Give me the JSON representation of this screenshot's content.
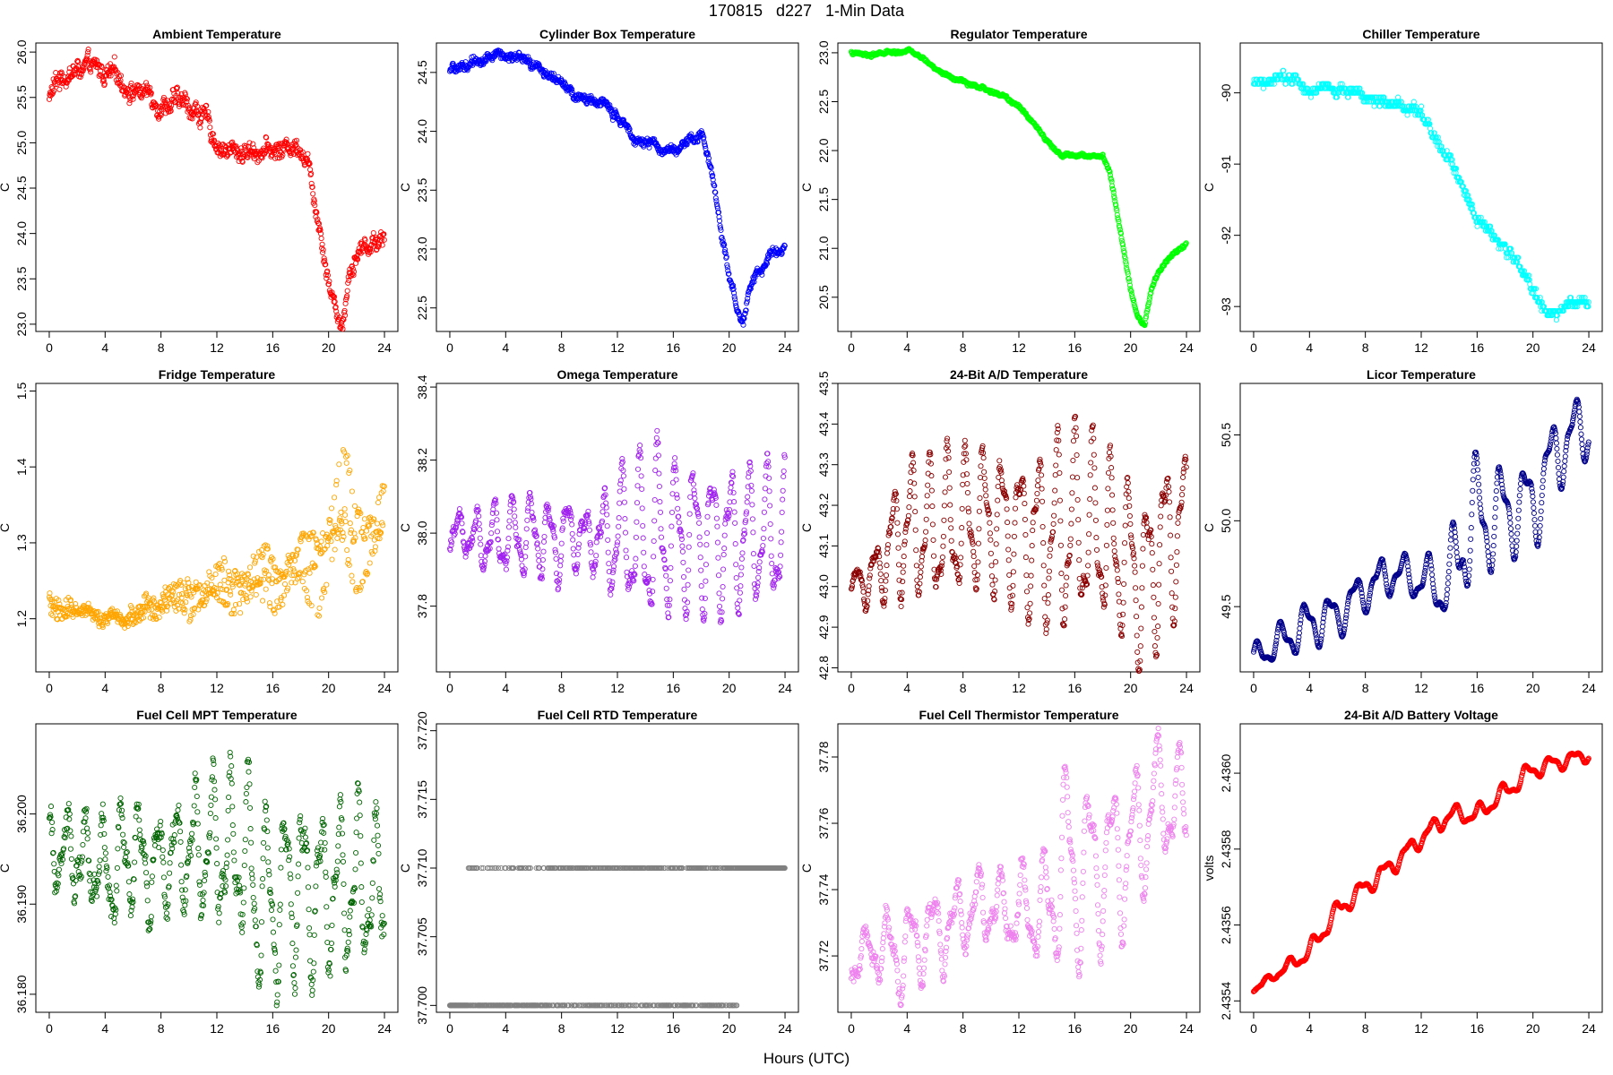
{
  "title": "170815   d227   1-Min Data",
  "x_axis_label": "Hours (UTC)",
  "chart_data": [
    {
      "type": "scatter",
      "title": "Ambient Temperature",
      "ylabel": "C",
      "color": "#ff0000",
      "xlim": [
        0,
        24
      ],
      "ylim": [
        22.92,
        26.1
      ],
      "xticks": [
        0,
        4,
        8,
        12,
        16,
        20,
        24
      ],
      "yticks": [
        23.0,
        23.5,
        24.0,
        24.5,
        25.0,
        25.5,
        26.0
      ],
      "ytick_labels": [
        "23.0",
        "23.5",
        "24.0",
        "24.5",
        "25.0",
        "25.5",
        "26.0"
      ],
      "trend_x": [
        0,
        0.5,
        1,
        2,
        3,
        4,
        5,
        6,
        7,
        8,
        9,
        10,
        11,
        12,
        13,
        14,
        15,
        16,
        17,
        18,
        18.5,
        19,
        19.5,
        20,
        20.5,
        21,
        21.5,
        22,
        23,
        24
      ],
      "trend_y": [
        25.5,
        25.65,
        25.75,
        25.8,
        25.8,
        25.75,
        25.7,
        25.6,
        25.55,
        25.45,
        25.45,
        25.4,
        25.3,
        25.0,
        24.9,
        24.9,
        24.95,
        24.9,
        24.95,
        25.0,
        24.8,
        24.4,
        24.0,
        23.5,
        23.2,
        23.0,
        23.6,
        23.8,
        23.9,
        24.0
      ],
      "noise": 0.09,
      "n_points": 1440
    },
    {
      "type": "scatter",
      "title": "Cylinder Box Temperature",
      "ylabel": "C",
      "color": "#0000ff",
      "xlim": [
        0,
        24
      ],
      "ylim": [
        22.3,
        24.75
      ],
      "xticks": [
        0,
        4,
        8,
        12,
        16,
        20,
        24
      ],
      "yticks": [
        22.5,
        23.0,
        23.5,
        24.0,
        24.5
      ],
      "ytick_labels": [
        "22.5",
        "23.0",
        "23.5",
        "24.0",
        "24.5"
      ],
      "trend_x": [
        0,
        1,
        2,
        3,
        4,
        5,
        6,
        7,
        8,
        9,
        10,
        11,
        12,
        13,
        14,
        15,
        16,
        17,
        18,
        18.5,
        19,
        19.5,
        20,
        20.5,
        21,
        21.5,
        22,
        23,
        24
      ],
      "trend_y": [
        24.5,
        24.55,
        24.6,
        24.65,
        24.65,
        24.6,
        24.55,
        24.5,
        24.4,
        24.3,
        24.25,
        24.25,
        24.1,
        24.0,
        23.9,
        23.85,
        23.85,
        23.9,
        23.95,
        23.8,
        23.5,
        23.1,
        22.8,
        22.5,
        22.35,
        22.7,
        22.8,
        22.95,
        23.05
      ],
      "noise": 0.035,
      "n_points": 1440
    },
    {
      "type": "scatter",
      "title": "Regulator Temperature",
      "ylabel": "C",
      "color": "#00ff00",
      "xlim": [
        0,
        24
      ],
      "ylim": [
        20.15,
        23.1
      ],
      "xticks": [
        0,
        4,
        8,
        12,
        16,
        20,
        24
      ],
      "yticks": [
        20.5,
        21.0,
        21.5,
        22.0,
        22.5,
        23.0
      ],
      "ytick_labels": [
        "20.5",
        "21.0",
        "21.5",
        "22.0",
        "22.5",
        "23.0"
      ],
      "trend_x": [
        0,
        1,
        2,
        3,
        4,
        5,
        6,
        7,
        8,
        9,
        10,
        11,
        12,
        13,
        14,
        15,
        16,
        17,
        18,
        18.5,
        19,
        19.5,
        20,
        20.5,
        21,
        21.5,
        22,
        23,
        24
      ],
      "trend_y": [
        23.0,
        22.98,
        22.99,
        23.0,
        23.02,
        22.95,
        22.85,
        22.75,
        22.7,
        22.65,
        22.6,
        22.55,
        22.45,
        22.3,
        22.1,
        21.95,
        21.95,
        21.95,
        21.95,
        21.8,
        21.4,
        21.0,
        20.6,
        20.3,
        20.2,
        20.6,
        20.75,
        20.95,
        21.05
      ],
      "noise": 0.015,
      "n_points": 1440
    },
    {
      "type": "scatter",
      "title": "Chiller Temperature",
      "ylabel": "C",
      "color": "#00ffff",
      "xlim": [
        0,
        24
      ],
      "ylim": [
        -93.35,
        -89.3
      ],
      "xticks": [
        0,
        4,
        8,
        12,
        16,
        20,
        24
      ],
      "yticks": [
        -93,
        -92,
        -91,
        -90
      ],
      "ytick_labels": [
        "-93",
        "-92",
        "-91",
        "-90"
      ],
      "trend_x": [
        0,
        1,
        2,
        3,
        4,
        5,
        6,
        7,
        8,
        9,
        10,
        11,
        12,
        13,
        14,
        15,
        16,
        17,
        18,
        19,
        20,
        21,
        22,
        23,
        24
      ],
      "trend_y": [
        -89.85,
        -89.8,
        -89.75,
        -89.75,
        -89.95,
        -89.95,
        -89.95,
        -89.95,
        -90.05,
        -90.1,
        -90.15,
        -90.2,
        -90.25,
        -90.6,
        -90.9,
        -91.3,
        -91.85,
        -91.95,
        -92.2,
        -92.45,
        -92.75,
        -93.1,
        -93.05,
        -92.95,
        -92.95
      ],
      "noise": 0.06,
      "quantum": 0.0625,
      "n_points": 1440
    },
    {
      "type": "scatter",
      "title": "Fridge Temperature",
      "ylabel": "C",
      "color": "#ffa500",
      "xlim": [
        0,
        24
      ],
      "ylim": [
        1.13,
        1.51
      ],
      "xticks": [
        0,
        4,
        8,
        12,
        16,
        20,
        24
      ],
      "yticks": [
        1.2,
        1.3,
        1.4,
        1.5
      ],
      "ytick_labels": [
        "1.2",
        "1.3",
        "1.4",
        "1.5"
      ],
      "trend_x": [
        0,
        2,
        4,
        6,
        8,
        10,
        12,
        14,
        16,
        18,
        19,
        20,
        21,
        22,
        23,
        24
      ],
      "trend_y": [
        1.215,
        1.21,
        1.2,
        1.21,
        1.215,
        1.225,
        1.235,
        1.245,
        1.25,
        1.255,
        1.27,
        1.3,
        1.33,
        1.3,
        1.31,
        1.32
      ],
      "spread_x": [
        0,
        4,
        8,
        12,
        16,
        18,
        20,
        21,
        22,
        24
      ],
      "spread_y": [
        0.03,
        0.005,
        0.03,
        0.06,
        0.075,
        0.08,
        0.16,
        0.18,
        0.14,
        0.1
      ],
      "noise": 0.008,
      "n_points": 1440
    },
    {
      "type": "scatter",
      "title": "Omega Temperature",
      "ylabel": "C",
      "color": "#a020f0",
      "xlim": [
        0,
        24
      ],
      "ylim": [
        37.62,
        38.41
      ],
      "xticks": [
        0,
        4,
        8,
        12,
        16,
        20,
        24
      ],
      "yticks": [
        37.8,
        38.0,
        38.2,
        38.4
      ],
      "ytick_labels": [
        "37.8",
        "38.0",
        "38.2",
        "38.4"
      ],
      "trend_x": [
        0,
        24
      ],
      "trend_y": [
        37.99,
        37.99
      ],
      "amp_x": [
        0,
        3,
        6,
        10,
        12,
        14,
        15,
        16,
        20,
        24
      ],
      "amp_y": [
        0.03,
        0.08,
        0.1,
        0.08,
        0.13,
        0.2,
        0.22,
        0.17,
        0.16,
        0.16
      ],
      "noise": 0.015,
      "n_points": 1440
    },
    {
      "type": "scatter",
      "title": "24-Bit A/D Temperature",
      "ylabel": "C",
      "color": "#8b0000",
      "xlim": [
        0,
        24
      ],
      "ylim": [
        42.79,
        43.5
      ],
      "xticks": [
        0,
        4,
        8,
        12,
        16,
        20,
        24
      ],
      "yticks": [
        42.8,
        42.9,
        43.0,
        43.1,
        43.2,
        43.3,
        43.4,
        43.5
      ],
      "ytick_labels": [
        "42.8",
        "42.9",
        "43.0",
        "43.1",
        "43.2",
        "43.3",
        "43.4",
        "43.5"
      ],
      "trend_x": [
        0,
        1,
        2,
        3,
        4,
        6,
        8,
        10,
        12,
        14,
        16,
        18,
        20,
        21,
        22,
        24
      ],
      "trend_y": [
        43.0,
        43.0,
        43.05,
        43.12,
        43.14,
        43.14,
        43.15,
        43.16,
        43.14,
        43.12,
        43.14,
        43.13,
        43.05,
        43.0,
        43.1,
        43.15
      ],
      "amp_x": [
        0,
        2,
        4,
        12,
        14,
        15,
        18,
        20,
        21,
        24
      ],
      "amp_y": [
        0.03,
        0.06,
        0.15,
        0.15,
        0.18,
        0.22,
        0.18,
        0.17,
        0.2,
        0.15
      ],
      "noise": 0.01,
      "n_points": 1440
    },
    {
      "type": "scatter",
      "title": "Licor Temperature",
      "ylabel": "C",
      "color": "#00008b",
      "xlim": [
        0,
        24
      ],
      "ylim": [
        49.12,
        50.8
      ],
      "xticks": [
        0,
        4,
        8,
        12,
        16,
        20,
        24
      ],
      "yticks": [
        49.5,
        50.0,
        50.5
      ],
      "ytick_labels": [
        "49.5",
        "50.0",
        "50.5"
      ],
      "trend_x": [
        0,
        2,
        4,
        6,
        8,
        10,
        12,
        14,
        15,
        16,
        18,
        20,
        22,
        24
      ],
      "trend_y": [
        49.2,
        49.3,
        49.4,
        49.45,
        49.6,
        49.7,
        49.65,
        49.6,
        49.95,
        50.0,
        50.05,
        50.1,
        50.45,
        50.55
      ],
      "amp_x": [
        0,
        4,
        8,
        12,
        14,
        15,
        18,
        20,
        22,
        24
      ],
      "amp_y": [
        0.06,
        0.12,
        0.1,
        0.1,
        0.18,
        0.35,
        0.22,
        0.22,
        0.2,
        0.15
      ],
      "period": 1.75,
      "noise": 0.004,
      "n_points": 1440
    },
    {
      "type": "scatter",
      "title": "Fuel Cell MPT Temperature",
      "ylabel": "C",
      "color": "#006400",
      "xlim": [
        0,
        24
      ],
      "ylim": [
        36.178,
        36.21
      ],
      "xticks": [
        0,
        4,
        8,
        12,
        16,
        20,
        24
      ],
      "yticks": [
        36.18,
        36.19,
        36.2
      ],
      "ytick_labels": [
        "36.180",
        "36.190",
        "36.200"
      ],
      "trend_x": [
        0,
        4,
        8,
        12,
        14,
        16,
        20,
        24
      ],
      "trend_y": [
        36.197,
        36.195,
        36.195,
        36.196,
        36.194,
        36.191,
        36.192,
        36.191
      ],
      "amp_x": [
        0,
        4,
        10,
        12,
        14,
        15,
        16,
        20,
        24
      ],
      "amp_y": [
        0.003,
        0.005,
        0.005,
        0.007,
        0.008,
        0.009,
        0.008,
        0.008,
        0.006
      ],
      "noise": 0.0015,
      "n_points": 1440
    },
    {
      "type": "scatter",
      "title": "Fuel Cell RTD Temperature",
      "ylabel": "C",
      "color": "#808080",
      "xlim": [
        0,
        24
      ],
      "ylim": [
        37.6995,
        37.7205
      ],
      "xticks": [
        0,
        4,
        8,
        12,
        16,
        20,
        24
      ],
      "yticks": [
        37.7,
        37.705,
        37.71,
        37.715,
        37.72
      ],
      "ytick_labels": [
        "37.700",
        "37.705",
        "37.710",
        "37.715",
        "37.720"
      ],
      "levels": [
        37.7,
        37.71,
        37.72
      ],
      "noise": 0,
      "n_points": 1440
    },
    {
      "type": "scatter",
      "title": "Fuel Cell Thermistor Temperature",
      "ylabel": "C",
      "color": "#ee82ee",
      "xlim": [
        0,
        24
      ],
      "ylim": [
        37.703,
        37.79
      ],
      "xticks": [
        0,
        4,
        8,
        12,
        16,
        20,
        24
      ],
      "yticks": [
        37.72,
        37.74,
        37.76,
        37.78
      ],
      "ytick_labels": [
        "37.72",
        "37.74",
        "37.76",
        "37.78"
      ],
      "trend_x": [
        0,
        2,
        4,
        6,
        8,
        10,
        12,
        14,
        15,
        16,
        18,
        20,
        22,
        24
      ],
      "trend_y": [
        37.717,
        37.722,
        37.723,
        37.727,
        37.733,
        37.735,
        37.733,
        37.735,
        37.75,
        37.745,
        37.748,
        37.752,
        37.768,
        37.765
      ],
      "amp_x": [
        0,
        4,
        8,
        12,
        14,
        15,
        18,
        20,
        22,
        24
      ],
      "amp_y": [
        0.004,
        0.012,
        0.01,
        0.01,
        0.015,
        0.025,
        0.02,
        0.02,
        0.015,
        0.012
      ],
      "period": 1.6,
      "noise": 0.002,
      "n_points": 1440
    },
    {
      "type": "scatter",
      "title": "24-Bit A/D Battery Voltage",
      "ylabel": "volts",
      "color": "#ff0000",
      "xlim": [
        0,
        24
      ],
      "ylim": [
        2.43537,
        2.43613
      ],
      "xticks": [
        0,
        4,
        8,
        12,
        16,
        20,
        24
      ],
      "yticks": [
        2.4354,
        2.4356,
        2.4358,
        2.436
      ],
      "ytick_labels": [
        "2.4354",
        "2.4356",
        "2.4358",
        "2.4360"
      ],
      "trend_x": [
        0,
        2,
        4,
        6,
        8,
        10,
        12,
        14,
        16,
        18,
        20,
        22,
        24
      ],
      "trend_y": [
        2.43543,
        2.43548,
        2.43553,
        2.43564,
        2.4357,
        2.43576,
        2.43583,
        2.43589,
        2.43589,
        2.43595,
        2.43601,
        2.43603,
        2.43605
      ],
      "amp_x": [
        0,
        4,
        12,
        20,
        24
      ],
      "amp_y": [
        5e-06,
        2e-05,
        2e-05,
        2e-05,
        1.5e-05
      ],
      "period": 1.7,
      "noise": 1.5e-06,
      "n_points": 1440
    }
  ]
}
